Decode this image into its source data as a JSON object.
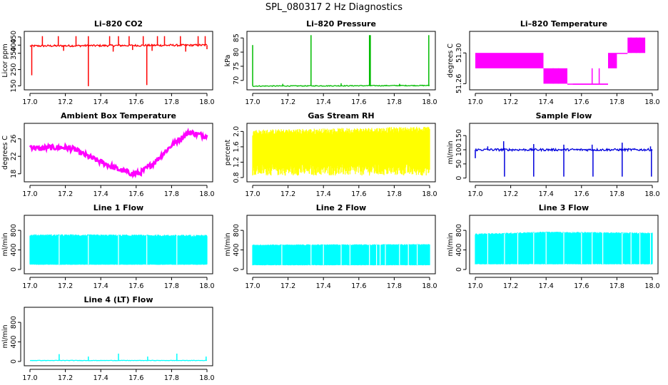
{
  "title": "SPL_080317  2 Hz Diagnostics",
  "chart_data": [
    {
      "type": "line",
      "title": "Li–820 CO2",
      "ylabel": "Licor ppm",
      "color": "#ff0000",
      "xlim": [
        17.0,
        18.0
      ],
      "xticks": [
        "17.0",
        "17.2",
        "17.4",
        "17.6",
        "17.8",
        "18.0"
      ],
      "ylim": [
        140,
        470
      ],
      "yticks": [
        150,
        250,
        350,
        400,
        450
      ],
      "yticklabels": [
        "150",
        "250",
        "350",
        "400",
        "450"
      ],
      "pattern": {
        "kind": "spiky",
        "baseline": [
          [
            17.0,
            395
          ],
          [
            18.0,
            400
          ]
        ],
        "noise": 6,
        "spikes_up": [
          [
            17.07,
            455
          ],
          [
            17.16,
            455
          ],
          [
            17.26,
            455
          ],
          [
            17.33,
            455
          ],
          [
            17.45,
            455
          ],
          [
            17.5,
            455
          ],
          [
            17.56,
            455
          ],
          [
            17.64,
            455
          ],
          [
            17.72,
            455
          ],
          [
            17.76,
            455
          ],
          [
            17.85,
            455
          ],
          [
            17.95,
            455
          ],
          [
            17.99,
            455
          ]
        ],
        "spikes_down": [
          [
            17.01,
            215
          ],
          [
            17.19,
            365
          ],
          [
            17.33,
            148
          ],
          [
            17.47,
            360
          ],
          [
            17.58,
            370
          ],
          [
            17.66,
            155
          ],
          [
            17.69,
            365
          ],
          [
            17.88,
            360
          ],
          [
            18.0,
            375
          ]
        ]
      }
    },
    {
      "type": "line",
      "title": "Li–820 Pressure",
      "ylabel": "kPa",
      "color": "#00bb00",
      "xlim": [
        17.0,
        18.0
      ],
      "xticks": [
        "17.0",
        "17.2",
        "17.4",
        "17.6",
        "17.8",
        "18.0"
      ],
      "ylim": [
        67.5,
        86.5
      ],
      "yticks": [
        70,
        75,
        80,
        85
      ],
      "yticklabels": [
        "70",
        "75",
        "80",
        "85"
      ],
      "pattern": {
        "kind": "spiky",
        "baseline": [
          [
            17.0,
            68.0
          ],
          [
            18.0,
            68.2
          ]
        ],
        "noise": 0.15,
        "spikes_up": [
          [
            17.0,
            82.5
          ],
          [
            17.33,
            86.0
          ],
          [
            17.66,
            86.0
          ],
          [
            17.665,
            86.0
          ],
          [
            17.995,
            86.0
          ],
          [
            17.17,
            68.8
          ],
          [
            17.5,
            69.0
          ],
          [
            17.83,
            68.8
          ]
        ],
        "spikes_down": []
      }
    },
    {
      "type": "line",
      "title": "Li–820 Temperature",
      "ylabel": "degrees C",
      "color": "#ff00ff",
      "xlim": [
        17.0,
        18.0
      ],
      "xticks": [
        "17.0",
        "17.2",
        "17.4",
        "17.6",
        "17.8",
        "18.0"
      ],
      "ylim": [
        51.255,
        51.325
      ],
      "yticks": [
        51.26,
        51.3
      ],
      "yticklabels": [
        "51.26",
        "51.30"
      ],
      "pattern": {
        "kind": "bands",
        "bands": [
          [
            17.0,
            17.385,
            51.28,
            51.3
          ],
          [
            17.385,
            17.52,
            51.26,
            51.28
          ],
          [
            17.52,
            17.55,
            51.26,
            51.26
          ],
          [
            17.55,
            17.75,
            51.26,
            51.26
          ],
          [
            17.55,
            17.75,
            51.26,
            51.26
          ],
          [
            17.75,
            17.8,
            51.28,
            51.3
          ],
          [
            17.8,
            17.86,
            51.3,
            51.3
          ],
          [
            17.86,
            17.96,
            51.3,
            51.32
          ]
        ],
        "band_bars": [
          [
            17.44,
            51.26,
            51.28
          ],
          [
            17.47,
            51.26,
            51.28
          ],
          [
            17.66,
            51.26,
            51.28
          ],
          [
            17.7,
            51.26,
            51.28
          ],
          [
            17.88,
            51.3,
            51.32
          ],
          [
            17.91,
            51.3,
            51.32
          ],
          [
            17.93,
            51.3,
            51.32
          ]
        ]
      }
    },
    {
      "type": "line",
      "title": "Ambient Box Temperature",
      "ylabel": "degrees C",
      "color": "#ff00ff",
      "xlim": [
        17.0,
        18.0
      ],
      "xticks": [
        "17.0",
        "17.2",
        "17.4",
        "17.6",
        "17.8",
        "18.0"
      ],
      "ylim": [
        16.7,
        29.0
      ],
      "yticks": [
        18,
        22,
        26
      ],
      "yticklabels": [
        "18",
        "22",
        "26"
      ],
      "pattern": {
        "kind": "curve",
        "noise": 0.6,
        "points": [
          [
            17.0,
            24.3
          ],
          [
            17.05,
            23.7
          ],
          [
            17.1,
            24.0
          ],
          [
            17.2,
            24.0
          ],
          [
            17.25,
            23.6
          ],
          [
            17.3,
            22.5
          ],
          [
            17.4,
            20.7
          ],
          [
            17.5,
            19.0
          ],
          [
            17.58,
            18.0
          ],
          [
            17.62,
            18.1
          ],
          [
            17.7,
            20.5
          ],
          [
            17.8,
            24.5
          ],
          [
            17.9,
            27.5
          ],
          [
            17.95,
            27.0
          ],
          [
            18.0,
            26.6
          ]
        ]
      }
    },
    {
      "type": "line",
      "title": "Gas Stream RH",
      "ylabel": "percent",
      "color": "#ffff00",
      "xlim": [
        17.0,
        18.0
      ],
      "xticks": [
        "17.0",
        "17.2",
        "17.4",
        "17.6",
        "17.8",
        "18.0"
      ],
      "ylim": [
        0.75,
        2.15
      ],
      "yticks": [
        0.8,
        1.2,
        1.6,
        2.0
      ],
      "yticklabels": [
        "0.8",
        "1.2",
        "1.6",
        "2.0"
      ],
      "pattern": {
        "kind": "fill",
        "top": [
          [
            17.0,
            1.97
          ],
          [
            18.0,
            2.05
          ]
        ],
        "bottom": [
          [
            17.0,
            1.0
          ],
          [
            18.0,
            1.0
          ]
        ],
        "top_jitter": 0.08,
        "bottom_jitter": 0.15
      }
    },
    {
      "type": "line",
      "title": "Sample Flow",
      "ylabel": "ml/min",
      "color": "#0000dd",
      "xlim": [
        17.0,
        18.0
      ],
      "xticks": [
        "17.0",
        "17.2",
        "17.4",
        "17.6",
        "17.8",
        "18.0"
      ],
      "ylim": [
        -5,
        185
      ],
      "yticks": [
        0,
        50,
        100,
        150
      ],
      "yticklabels": [
        "0",
        "50",
        "100",
        "150"
      ],
      "pattern": {
        "kind": "spiky",
        "baseline": [
          [
            17.0,
            100
          ],
          [
            18.0,
            100
          ]
        ],
        "noise": 4,
        "spikes_up": [
          [
            17.07,
            112
          ],
          [
            17.16,
            130
          ],
          [
            17.33,
            120
          ],
          [
            17.5,
            118
          ],
          [
            17.66,
            118
          ],
          [
            17.83,
            125
          ],
          [
            17.99,
            112
          ]
        ],
        "spikes_down": [
          [
            17.0,
            70
          ],
          [
            17.165,
            5
          ],
          [
            17.33,
            5
          ],
          [
            17.5,
            5
          ],
          [
            17.665,
            5
          ],
          [
            17.83,
            5
          ],
          [
            17.995,
            5
          ]
        ]
      }
    },
    {
      "type": "line",
      "title": "Line 1 Flow",
      "ylabel": "ml/min",
      "color": "#00ffff",
      "xlim": [
        17.0,
        18.0
      ],
      "xticks": [
        "17.0",
        "17.2",
        "17.4",
        "17.6",
        "17.8",
        "18.0"
      ],
      "ylim": [
        -40,
        1060
      ],
      "yticks": [
        0,
        400,
        800
      ],
      "yticklabels": [
        "0",
        "400",
        "800"
      ],
      "pattern": {
        "kind": "fill",
        "top": [
          [
            17.0,
            700
          ],
          [
            18.0,
            690
          ]
        ],
        "bottom": [
          [
            17.0,
            100
          ],
          [
            18.0,
            100
          ]
        ],
        "top_jitter": 20,
        "bottom_jitter": 5,
        "gaps": [
          17.165,
          17.33,
          17.5,
          17.66,
          17.83
        ]
      }
    },
    {
      "type": "line",
      "title": "Line 2 Flow",
      "ylabel": "ml/min",
      "color": "#00ffff",
      "xlim": [
        17.0,
        18.0
      ],
      "xticks": [
        "17.0",
        "17.2",
        "17.4",
        "17.6",
        "17.8",
        "18.0"
      ],
      "ylim": [
        -40,
        1060
      ],
      "yticks": [
        0,
        400,
        800
      ],
      "yticklabels": [
        "0",
        "400",
        "800"
      ],
      "pattern": {
        "kind": "fill",
        "top": [
          [
            17.0,
            500
          ],
          [
            18.0,
            510
          ]
        ],
        "bottom": [
          [
            17.0,
            90
          ],
          [
            18.0,
            90
          ]
        ],
        "top_jitter": 10,
        "bottom_jitter": 5,
        "gaps": [
          17.165,
          17.33,
          17.4,
          17.5,
          17.55,
          17.66,
          17.7,
          17.72,
          17.75,
          17.83,
          17.88,
          17.93
        ]
      }
    },
    {
      "type": "line",
      "title": "Line 3 Flow",
      "ylabel": "ml/min",
      "color": "#00ffff",
      "xlim": [
        17.0,
        18.0
      ],
      "xticks": [
        "17.0",
        "17.2",
        "17.4",
        "17.6",
        "17.8",
        "18.0"
      ],
      "ylim": [
        -40,
        1060
      ],
      "yticks": [
        0,
        400,
        800
      ],
      "yticklabels": [
        "0",
        "400",
        "800"
      ],
      "pattern": {
        "kind": "fill",
        "top": [
          [
            17.0,
            720
          ],
          [
            17.2,
            740
          ],
          [
            17.4,
            760
          ],
          [
            18.0,
            740
          ]
        ],
        "bottom": [
          [
            17.0,
            110
          ],
          [
            18.0,
            110
          ]
        ],
        "top_jitter": 15,
        "bottom_jitter": 5,
        "gaps": [
          17.07,
          17.165,
          17.24,
          17.33,
          17.4,
          17.5,
          17.6,
          17.66,
          17.72,
          17.83,
          17.88,
          17.93,
          17.99
        ]
      }
    },
    {
      "type": "line",
      "title": "Line 4 (LT) Flow",
      "ylabel": "ml/min",
      "color": "#00ffff",
      "xlim": [
        17.0,
        18.0
      ],
      "xticks": [
        "17.0",
        "17.2",
        "17.4",
        "17.6",
        "17.8",
        "18.0"
      ],
      "ylim": [
        -40,
        1060
      ],
      "yticks": [
        0,
        400,
        800
      ],
      "yticklabels": [
        "0",
        "400",
        "800"
      ],
      "pattern": {
        "kind": "spiky",
        "baseline": [
          [
            17.0,
            20
          ],
          [
            18.0,
            20
          ]
        ],
        "noise": 4,
        "spikes_up": [
          [
            17.165,
            150
          ],
          [
            17.33,
            100
          ],
          [
            17.5,
            160
          ],
          [
            17.665,
            100
          ],
          [
            17.83,
            160
          ],
          [
            17.995,
            100
          ]
        ],
        "spikes_down": []
      }
    }
  ]
}
